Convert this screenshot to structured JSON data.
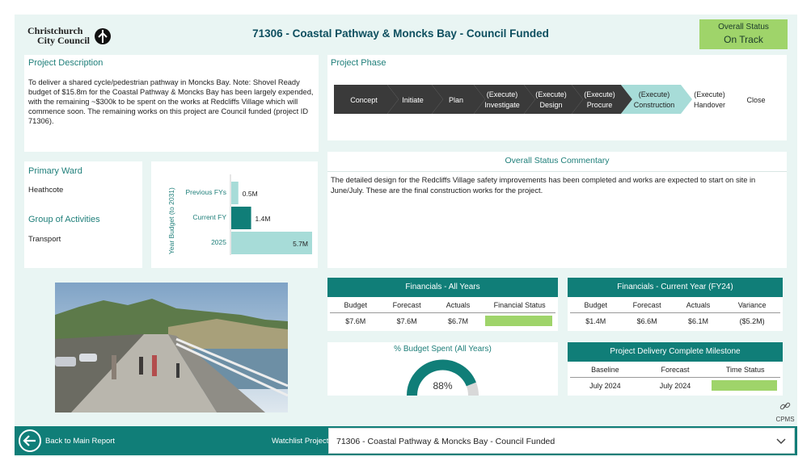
{
  "header": {
    "logo_line1": "Christchurch",
    "logo_line2": "City Council",
    "title": "71306 - Coastal Pathway & Moncks Bay - Council Funded",
    "status_label": "Overall Status",
    "status_value": "On Track"
  },
  "description": {
    "heading": "Project Description",
    "text": "To deliver a shared cycle/pedestrian pathway in Moncks Bay. Note: Shovel Ready budget of $15.8m for the Coastal Pathway & Moncks Bay has been largely expended, with the remaining ~$300k to be spent on the works at Redcliffs Village which will commence soon. The remaining works on this project are Council funded (project ID 71306)."
  },
  "phase": {
    "heading": "Project Phase",
    "steps": [
      {
        "l1": "",
        "l2": "Concept"
      },
      {
        "l1": "",
        "l2": "Initiate"
      },
      {
        "l1": "",
        "l2": "Plan"
      },
      {
        "l1": "(Execute)",
        "l2": "Investigate"
      },
      {
        "l1": "(Execute)",
        "l2": "Design"
      },
      {
        "l1": "(Execute)",
        "l2": "Procure"
      },
      {
        "l1": "(Execute)",
        "l2": "Construction"
      },
      {
        "l1": "(Execute)",
        "l2": "Handover"
      },
      {
        "l1": "",
        "l2": "Close"
      }
    ],
    "current_index": 6
  },
  "ward": {
    "heading": "Primary Ward",
    "value": "Heathcote",
    "group_heading": "Group of Activities",
    "group_value": "Transport"
  },
  "budget_chart": {
    "axis_title": "Year Budget (to 2031)",
    "colors": {
      "previous": "#a7dcd8",
      "current": "#107e78",
      "future": "#a7dcd8"
    }
  },
  "chart_data": {
    "type": "bar",
    "categories": [
      "Previous FYs",
      "Current FY",
      "2025"
    ],
    "values": [
      0.5,
      1.4,
      5.7
    ],
    "value_labels": [
      "0.5M",
      "1.4M",
      "5.7M"
    ],
    "ylabel": "Year Budget (to 2031)"
  },
  "commentary": {
    "heading": "Overall Status Commentary",
    "text": "The detailed design for the Redcliffs Village safety improvements has been completed and works are expected to start on site in June/July. These are the final construction works for the project."
  },
  "fin_all": {
    "heading": "Financials - All Years",
    "cols": [
      "Budget",
      "Forecast",
      "Actuals",
      "Financial Status"
    ],
    "values": [
      "$7.6M",
      "$7.6M",
      "$6.7M"
    ],
    "status_color": "#9fd46a"
  },
  "fin_current": {
    "heading": "Financials - Current Year (FY24)",
    "cols": [
      "Budget",
      "Forecast",
      "Actuals",
      "Variance"
    ],
    "values": [
      "$1.4M",
      "$6.6M",
      "$6.1M",
      "($5.2M)"
    ]
  },
  "gauge": {
    "heading": "% Budget Spent (All Years)",
    "value_label": "88%",
    "fraction": 0.88
  },
  "milestone": {
    "heading": "Project Delivery Complete Milestone",
    "cols": [
      "Baseline",
      "Forecast",
      "Time Status"
    ],
    "values": [
      "July 2024",
      "July 2024"
    ],
    "status_color": "#9fd46a"
  },
  "cpms": {
    "label": "CPMS",
    "icon": "chain-link-icon"
  },
  "footer": {
    "back_label": "Back to Main Report",
    "watchlist_label": "Watchlist Project:",
    "selected_project": "71306 - Coastal Pathway & Moncks Bay - Council Funded"
  },
  "colors": {
    "teal": "#107e78",
    "light_teal": "#a7dcd8",
    "status_green": "#9fd46a",
    "background": "#e9f5f3"
  }
}
